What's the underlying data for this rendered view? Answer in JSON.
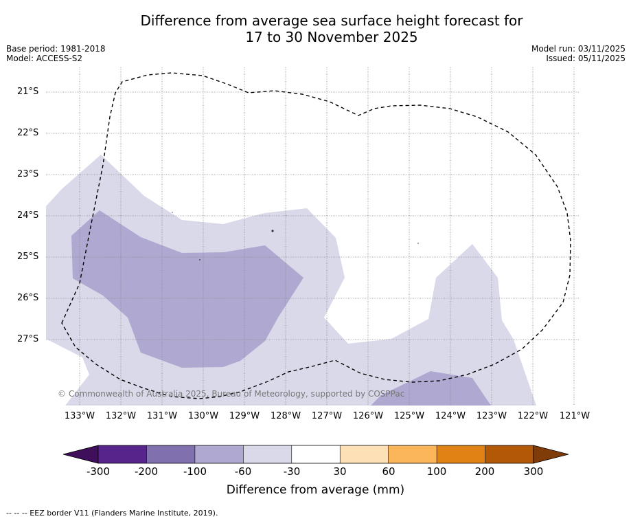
{
  "title": {
    "line1": "Difference from average sea surface height forecast for",
    "line2": "17 to 30 November 2025"
  },
  "meta": {
    "base_period": "Base period: 1981-2018",
    "model": "Model: ACCESS-S2",
    "model_run": "Model run: 03/11/2025",
    "issued": "Issued: 05/11/2025"
  },
  "map": {
    "lat_labels": [
      "21°S",
      "22°S",
      "23°S",
      "24°S",
      "25°S",
      "26°S",
      "27°S"
    ],
    "lon_labels": [
      "133°W",
      "132°W",
      "131°W",
      "130°W",
      "129°W",
      "128°W",
      "127°W",
      "126°W",
      "125°W",
      "124°W",
      "123°W",
      "122°W",
      "121°W"
    ],
    "copyright": "© Commonwealth of Australia 2025, Bureau of Meteorology, supported by COSPPac",
    "eez_border": "EEZ border (dashed)"
  },
  "colorbar": {
    "title": "Difference from average (mm)",
    "tick_labels": [
      "-300",
      "-200",
      "-100",
      "-60",
      "-30",
      "30",
      "60",
      "100",
      "200",
      "300"
    ],
    "colors": [
      "#3f0f5c",
      "#56248a",
      "#8070ad",
      "#afa8d0",
      "#d9d9ea",
      "#ffffff",
      "#fee0b6",
      "#fbb65c",
      "#e08214",
      "#b35806",
      "#7f3b08"
    ]
  },
  "footnote": "--  --  -- EEZ border V11 (Flanders Marine Institute, 2019)."
}
